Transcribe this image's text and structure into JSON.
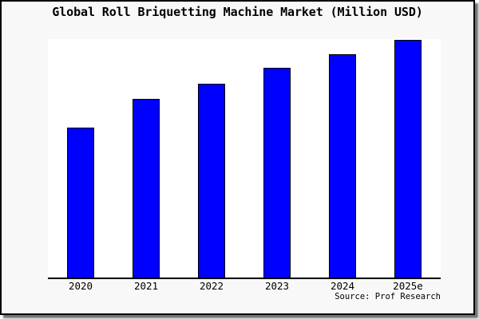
{
  "frame": {
    "background": "#f8f8f8",
    "plot_background": "#ffffff",
    "border_color": "#000000"
  },
  "title": "Global Roll Briquetting Machine Market (Million USD)",
  "source_caption": "Source: Prof Research",
  "chart_data": {
    "type": "bar",
    "title": "Global Roll Briquetting Machine Market (Million USD)",
    "categories": [
      "2020",
      "2021",
      "2022",
      "2023",
      "2024",
      "2025e"
    ],
    "values": [
      62.8,
      74.9,
      81.4,
      87.8,
      93.8,
      99.8
    ],
    "value_scale": "percent of plot-area height; no y-axis ticks or numeric value labels are shown in the chart",
    "xlabel": "",
    "ylabel": "",
    "ylim": [
      0,
      100
    ],
    "grid": false,
    "legend": false,
    "y_axis_visible": false,
    "bar_color": "#0000FF",
    "bar_border_color": "#000000",
    "annotation": "Source: Prof Research"
  }
}
